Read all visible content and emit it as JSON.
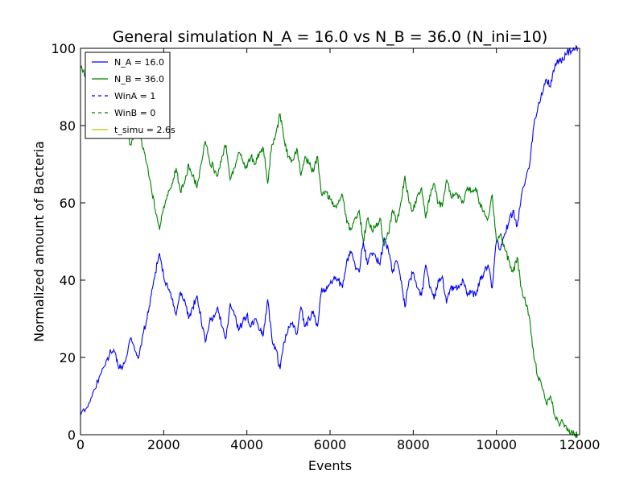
{
  "chart_data": {
    "type": "line",
    "title": "General simulation N_A = 16.0 vs N_B = 36.0 (N_ini=10)",
    "xlabel": "Events",
    "ylabel": "Normalized amount of Bacteria",
    "xlim": [
      0,
      12000
    ],
    "ylim": [
      0,
      100
    ],
    "xticks": [
      0,
      2000,
      4000,
      6000,
      8000,
      10000,
      12000
    ],
    "yticks": [
      0,
      20,
      40,
      60,
      80,
      100
    ],
    "grid": false,
    "legend_position": "upper-left",
    "legend": [
      {
        "label": "N_A = 16.0",
        "color": "#0000ff",
        "style": "solid"
      },
      {
        "label": "N_B = 36.0",
        "color": "#008000",
        "style": "solid"
      },
      {
        "label": "WinA = 1",
        "color": "#0000ff",
        "style": "dashed"
      },
      {
        "label": "WinB = 0",
        "color": "#008000",
        "style": "dashed"
      },
      {
        "label": "t_simu = 2.6s",
        "color": "#bfbf00",
        "style": "solid"
      }
    ],
    "series": [
      {
        "name": "N_A = 16.0",
        "color": "#0000ff",
        "x": [
          0,
          150,
          300,
          450,
          600,
          700,
          800,
          900,
          1000,
          1100,
          1200,
          1300,
          1400,
          1500,
          1600,
          1700,
          1800,
          1900,
          2000,
          2100,
          2200,
          2300,
          2400,
          2500,
          2600,
          2700,
          2800,
          2900,
          3000,
          3100,
          3200,
          3300,
          3400,
          3500,
          3600,
          3700,
          3800,
          3900,
          4000,
          4100,
          4200,
          4300,
          4400,
          4500,
          4600,
          4700,
          4800,
          4900,
          5000,
          5100,
          5200,
          5300,
          5400,
          5500,
          5600,
          5700,
          5800,
          5900,
          6000,
          6100,
          6200,
          6300,
          6400,
          6500,
          6600,
          6700,
          6800,
          6900,
          7000,
          7100,
          7200,
          7300,
          7400,
          7500,
          7600,
          7700,
          7800,
          7900,
          8000,
          8100,
          8200,
          8300,
          8400,
          8500,
          8600,
          8700,
          8800,
          8900,
          9000,
          9100,
          9200,
          9300,
          9400,
          9500,
          9600,
          9700,
          9800,
          9900,
          10000,
          10100,
          10200,
          10300,
          10400,
          10500,
          10600,
          10700,
          10800,
          10900,
          11000,
          11100,
          11200,
          11300,
          11400,
          11500,
          11600,
          11700,
          11800,
          11900,
          11950
        ],
        "y": [
          5,
          7,
          11,
          15,
          18,
          21,
          22,
          18,
          17,
          20,
          25,
          22,
          20,
          26,
          30,
          36,
          42,
          47,
          41,
          38,
          35,
          31,
          37,
          35,
          30,
          33,
          36,
          30,
          24,
          29,
          31,
          33,
          28,
          25,
          34,
          31,
          27,
          29,
          31,
          28,
          30,
          27,
          26,
          35,
          25,
          22,
          17,
          24,
          28,
          29,
          26,
          33,
          28,
          30,
          32,
          28,
          38,
          37,
          39,
          41,
          40,
          38,
          45,
          47,
          44,
          42,
          50,
          44,
          47,
          46,
          44,
          51,
          48,
          42,
          45,
          40,
          33,
          40,
          42,
          38,
          36,
          44,
          38,
          35,
          40,
          41,
          34,
          38,
          38,
          38,
          40,
          36,
          37,
          36,
          40,
          42,
          44,
          38,
          50,
          48,
          52,
          55,
          58,
          54,
          62,
          66,
          70,
          80,
          85,
          88,
          92,
          90,
          95,
          97,
          97,
          99,
          99,
          100,
          100
        ]
      },
      {
        "name": "N_B = 36.0",
        "color": "#008000",
        "x": [
          0,
          150,
          300,
          450,
          600,
          700,
          800,
          900,
          1000,
          1100,
          1200,
          1300,
          1400,
          1500,
          1600,
          1700,
          1800,
          1900,
          2000,
          2100,
          2200,
          2300,
          2400,
          2500,
          2600,
          2700,
          2800,
          2900,
          3000,
          3100,
          3200,
          3300,
          3400,
          3500,
          3600,
          3700,
          3800,
          3900,
          4000,
          4100,
          4200,
          4300,
          4400,
          4500,
          4600,
          4700,
          4800,
          4900,
          5000,
          5100,
          5200,
          5300,
          5400,
          5500,
          5600,
          5700,
          5800,
          5900,
          6000,
          6100,
          6200,
          6300,
          6400,
          6500,
          6600,
          6700,
          6800,
          6900,
          7000,
          7100,
          7200,
          7300,
          7400,
          7500,
          7600,
          7700,
          7800,
          7900,
          8000,
          8100,
          8200,
          8300,
          8400,
          8500,
          8600,
          8700,
          8800,
          8900,
          9000,
          9100,
          9200,
          9300,
          9400,
          9500,
          9600,
          9700,
          9800,
          9900,
          10000,
          10100,
          10200,
          10300,
          10400,
          10500,
          10600,
          10700,
          10800,
          10900,
          11000,
          11100,
          11200,
          11300,
          11400,
          11500,
          11600,
          11700,
          11800,
          11900,
          11950
        ],
        "y": [
          95,
          93,
          89,
          85,
          82,
          79,
          78,
          82,
          83,
          80,
          75,
          78,
          80,
          74,
          70,
          64,
          58,
          53,
          59,
          62,
          65,
          69,
          63,
          65,
          70,
          67,
          64,
          70,
          76,
          71,
          69,
          67,
          72,
          75,
          66,
          69,
          73,
          71,
          69,
          72,
          70,
          73,
          74,
          65,
          75,
          78,
          83,
          76,
          72,
          71,
          74,
          67,
          72,
          70,
          68,
          72,
          62,
          63,
          61,
          59,
          60,
          62,
          55,
          53,
          56,
          58,
          50,
          56,
          53,
          54,
          56,
          49,
          52,
          58,
          55,
          60,
          67,
          60,
          58,
          62,
          64,
          56,
          62,
          65,
          60,
          59,
          66,
          62,
          62,
          62,
          60,
          64,
          63,
          64,
          60,
          58,
          56,
          62,
          50,
          52,
          48,
          45,
          42,
          46,
          38,
          34,
          30,
          20,
          15,
          12,
          8,
          10,
          5,
          3,
          3,
          1,
          1,
          0,
          0
        ]
      }
    ]
  }
}
